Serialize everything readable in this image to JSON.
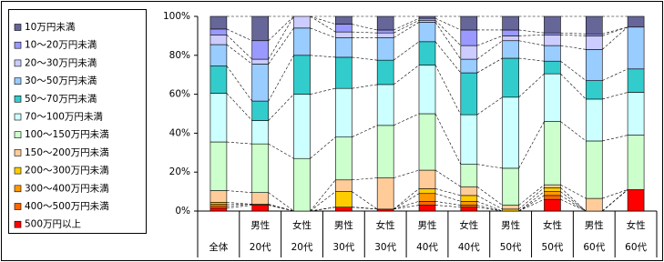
{
  "chart_data": {
    "type": "stacked_bar_100",
    "categories": [
      [
        "全体"
      ],
      [
        "男性",
        "20代"
      ],
      [
        "女性",
        "20代"
      ],
      [
        "男性",
        "30代"
      ],
      [
        "女性",
        "30代"
      ],
      [
        "男性",
        "40代"
      ],
      [
        "女性",
        "40代"
      ],
      [
        "男性",
        "50代"
      ],
      [
        "女性",
        "50代"
      ],
      [
        "男性",
        "60代"
      ],
      [
        "女性",
        "60代"
      ]
    ],
    "series": [
      {
        "name": "500万円以上",
        "color": "#ff0000",
        "values": [
          1.5,
          3,
          0,
          2,
          1,
          3,
          2,
          0,
          6,
          0,
          11
        ]
      },
      {
        "name": "400～500万円未満",
        "color": "#ff6600",
        "values": [
          1,
          0.5,
          0,
          0,
          0,
          2,
          1,
          0,
          2,
          0,
          0
        ]
      },
      {
        "name": "300～400万円未満",
        "color": "#ff9900",
        "values": [
          1,
          0,
          0,
          0,
          0,
          4,
          2,
          0,
          2,
          0,
          0
        ]
      },
      {
        "name": "200～300万円未満",
        "color": "#ffcc00",
        "values": [
          1,
          0,
          0,
          8,
          0,
          2.5,
          3,
          1,
          2,
          0,
          0
        ]
      },
      {
        "name": "150～200万円未満",
        "color": "#ffcc99",
        "values": [
          6,
          6,
          0,
          6,
          16,
          9.5,
          4.5,
          2,
          1.5,
          6.5,
          0
        ]
      },
      {
        "name": "100～150万円未満",
        "color": "#ccffcc",
        "values": [
          25,
          25,
          27,
          22,
          27,
          29,
          11.5,
          19,
          32.5,
          29.5,
          28
        ]
      },
      {
        "name": "70～100万円未満",
        "color": "#ccffff",
        "values": [
          25,
          12,
          33,
          25,
          21,
          25,
          25.5,
          36.5,
          24.5,
          21.5,
          22
        ]
      },
      {
        "name": "50～70万円未満",
        "color": "#33cccc",
        "values": [
          14,
          10,
          20,
          16,
          12.5,
          12,
          21.5,
          20,
          6.5,
          9.5,
          12
        ]
      },
      {
        "name": "30～50万円未満",
        "color": "#99ccff",
        "values": [
          11,
          19,
          14,
          10,
          11.5,
          10,
          7,
          9,
          8,
          16,
          21.5
        ]
      },
      {
        "name": "20～30万円未満",
        "color": "#ccccff",
        "values": [
          5,
          2.5,
          6,
          3,
          2.5,
          1,
          7,
          2.5,
          5.5,
          7,
          0
        ]
      },
      {
        "name": "10～20万円未満",
        "color": "#9999ff",
        "values": [
          3,
          9.5,
          0,
          4,
          1.5,
          1,
          8,
          3,
          1,
          1,
          0
        ]
      },
      {
        "name": "10万円未満",
        "color": "#666699",
        "values": [
          6.5,
          12.5,
          0,
          4,
          7,
          1,
          7,
          7,
          8.5,
          9,
          5.5
        ]
      }
    ],
    "ylim": [
      0,
      100
    ],
    "yticks": [
      {
        "value": 0,
        "label": "0%"
      },
      {
        "value": 20,
        "label": "20%"
      },
      {
        "value": 40,
        "label": "40%"
      },
      {
        "value": 60,
        "label": "60%"
      },
      {
        "value": 80,
        "label": "80%"
      },
      {
        "value": 100,
        "label": "100%"
      }
    ],
    "legend": "left"
  }
}
